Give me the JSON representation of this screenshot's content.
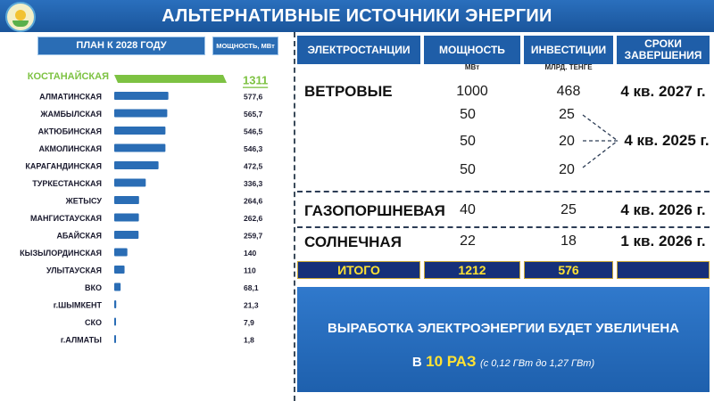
{
  "header": {
    "title": "АЛЬТЕРНАТИВНЫЕ ИСТОЧНИКИ ЭНЕРГИИ"
  },
  "left": {
    "plan_label": "ПЛАН К 2028 ГОДУ",
    "unit_label": "МОЩНОСТЬ, МВт"
  },
  "colors": {
    "header": "#1f5ea8",
    "bar": "#2a6db5",
    "highlight_bar": "#7dc242",
    "highlight_text": "#7dc242",
    "total_text": "#ffe233"
  },
  "chart_data": {
    "type": "bar",
    "orientation": "horizontal",
    "categories": [
      "КОСТАНАЙСКАЯ",
      "АЛМАТИНСКАЯ",
      "ЖАМБЫЛСКАЯ",
      "АКТЮБИНСКАЯ",
      "АКМОЛИНСКАЯ",
      "КАРАГАНДИНСКАЯ",
      "ТУРКЕСТАНСКАЯ",
      "ЖЕТЫСУ",
      "МАНГИСТАУСКАЯ",
      "АБАЙСКАЯ",
      "КЫЗЫЛОРДИНСКАЯ",
      "УЛЫТАУСКАЯ",
      "ВКО",
      "г.ШЫМКЕНТ",
      "СКО",
      "г.АЛМАТЫ"
    ],
    "values": [
      1311,
      577.6,
      565.7,
      546.5,
      546.3,
      472.5,
      336.3,
      264.6,
      262.6,
      259.7,
      140,
      110,
      68.1,
      21.3,
      7.9,
      1.8
    ],
    "value_labels": [
      "1311",
      "577,6",
      "565,7",
      "546,5",
      "546,3",
      "472,5",
      "336,3",
      "264,6",
      "262,6",
      "259,7",
      "140",
      "110",
      "68,1",
      "21,3",
      "7,9",
      "1,8"
    ],
    "highlight_index": 0,
    "title": "",
    "xlabel": "",
    "ylabel": "",
    "grid": false
  },
  "table": {
    "headers": {
      "plants": "ЭЛЕКТРОСТАНЦИИ",
      "power": "МОЩНОСТЬ",
      "invest": "ИНВЕСТИЦИИ",
      "terms": "СРОКИ ЗАВЕРШЕНИЯ"
    },
    "units": {
      "power": "МВт",
      "invest": "МЛРД. ТЕНГЕ"
    },
    "wind": {
      "label": "ВЕТРОВЫЕ",
      "total_power": "1000",
      "total_invest": "468",
      "total_term": "4 кв. 2027 г.",
      "sub_power": [
        "50",
        "50",
        "50"
      ],
      "sub_invest": [
        "25",
        "20",
        "20"
      ],
      "sub_term": "4 кв. 2025 г."
    },
    "gas": {
      "label": "ГАЗОПОРШНЕВАЯ",
      "power": "40",
      "invest": "25",
      "term": "4 кв. 2026 г."
    },
    "solar": {
      "label": "СОЛНЕЧНАЯ",
      "power": "22",
      "invest": "18",
      "term": "1 кв. 2026 г."
    },
    "total": {
      "label": "ИТОГО",
      "power": "1212",
      "invest": "576"
    }
  },
  "banner": {
    "line1": "ВЫРАБОТКА ЭЛЕКТРОЭНЕРГИИ БУДЕТ УВЕЛИЧЕНА",
    "prefix": "В",
    "highlight": "10 РАЗ",
    "note": "(с 0,12 ГВт до 1,27 ГВт)"
  }
}
